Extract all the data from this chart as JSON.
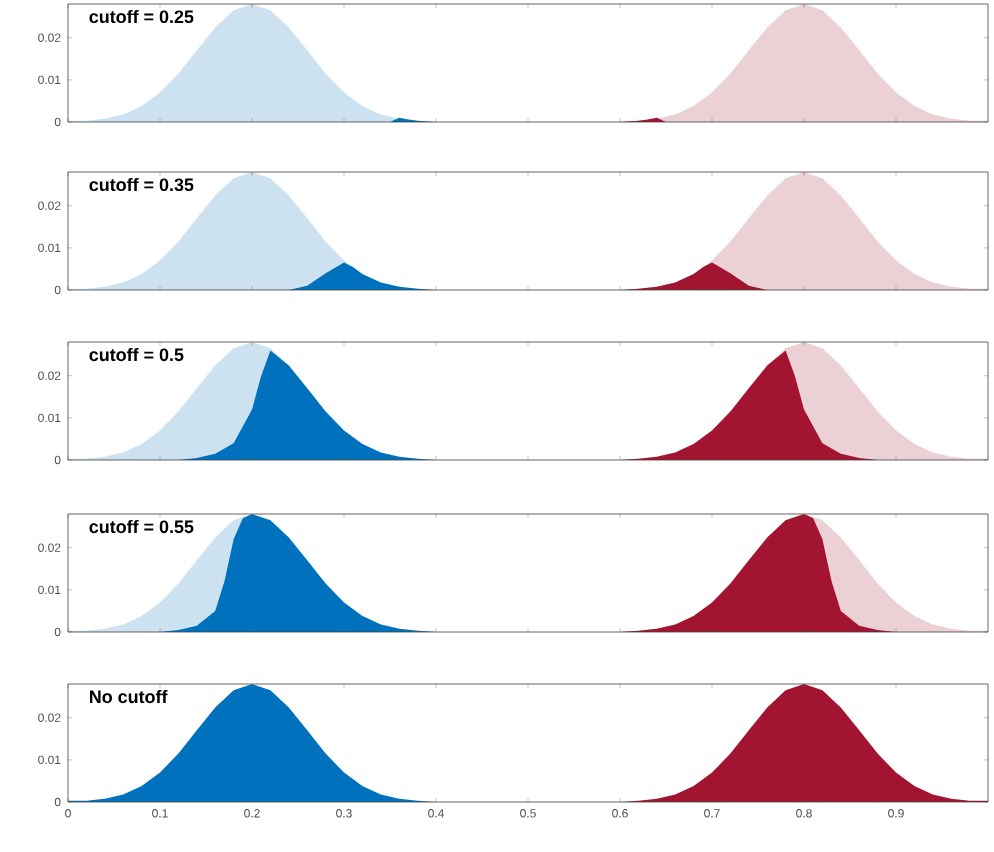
{
  "chart_data": [
    {
      "type": "area",
      "title": "cutoff = 0.25",
      "xlim": [
        0,
        1
      ],
      "ylim": [
        0,
        0.028
      ],
      "xticks": [
        0,
        0.1,
        0.2,
        0.3,
        0.4,
        0.5,
        0.6,
        0.7,
        0.8,
        0.9
      ],
      "yticks": [
        0,
        0.01,
        0.02
      ],
      "tick_labels": "y",
      "series": [
        {
          "color": "#cce2f0",
          "x": [
            0,
            0.02,
            0.04,
            0.06,
            0.08,
            0.1,
            0.12,
            0.14,
            0.16,
            0.18,
            0.2,
            0.22,
            0.24,
            0.26,
            0.28,
            0.3,
            0.32,
            0.34,
            0.36,
            0.38,
            0.4
          ],
          "values": [
            0.0003,
            0.0003,
            0.0008,
            0.0018,
            0.0038,
            0.007,
            0.0115,
            0.017,
            0.0224,
            0.0265,
            0.028,
            0.0265,
            0.0224,
            0.017,
            0.0115,
            0.007,
            0.0038,
            0.0018,
            0.0008,
            0.0003,
            0
          ]
        },
        {
          "color": "#ebd0d5",
          "x": [
            0.6,
            0.62,
            0.64,
            0.66,
            0.68,
            0.7,
            0.72,
            0.74,
            0.76,
            0.78,
            0.8,
            0.82,
            0.84,
            0.86,
            0.88,
            0.9,
            0.92,
            0.94,
            0.96,
            0.98,
            1
          ],
          "values": [
            0,
            0.0003,
            0.0008,
            0.0018,
            0.0038,
            0.007,
            0.0115,
            0.017,
            0.0224,
            0.0265,
            0.028,
            0.0265,
            0.0224,
            0.017,
            0.0115,
            0.007,
            0.0038,
            0.0018,
            0.0008,
            0.0003,
            0.0003
          ]
        },
        {
          "color": "#0072bd",
          "x": [
            0.35,
            0.36,
            0.37,
            0.38,
            0.4
          ],
          "values": [
            0,
            0.001,
            0.0006,
            0.0003,
            0
          ]
        },
        {
          "color": "#a2142f",
          "x": [
            0.6,
            0.62,
            0.63,
            0.64,
            0.65
          ],
          "values": [
            0,
            0.0003,
            0.0006,
            0.001,
            0
          ]
        }
      ]
    },
    {
      "type": "area",
      "title": "cutoff = 0.35",
      "xlim": [
        0,
        1
      ],
      "ylim": [
        0,
        0.028
      ],
      "xticks": [
        0,
        0.1,
        0.2,
        0.3,
        0.4,
        0.5,
        0.6,
        0.7,
        0.8,
        0.9
      ],
      "yticks": [
        0,
        0.01,
        0.02
      ],
      "tick_labels": "y",
      "series": [
        {
          "color": "#cce2f0",
          "x": [
            0,
            0.02,
            0.04,
            0.06,
            0.08,
            0.1,
            0.12,
            0.14,
            0.16,
            0.18,
            0.2,
            0.22,
            0.24,
            0.26,
            0.28,
            0.3,
            0.32,
            0.34,
            0.36,
            0.38,
            0.4
          ],
          "values": [
            0.0003,
            0.0003,
            0.0008,
            0.0018,
            0.0038,
            0.007,
            0.0115,
            0.017,
            0.0224,
            0.0265,
            0.028,
            0.0265,
            0.0224,
            0.017,
            0.0115,
            0.007,
            0.0038,
            0.0018,
            0.0008,
            0.0003,
            0
          ]
        },
        {
          "color": "#ebd0d5",
          "x": [
            0.6,
            0.62,
            0.64,
            0.66,
            0.68,
            0.7,
            0.72,
            0.74,
            0.76,
            0.78,
            0.8,
            0.82,
            0.84,
            0.86,
            0.88,
            0.9,
            0.92,
            0.94,
            0.96,
            0.98,
            1
          ],
          "values": [
            0,
            0.0003,
            0.0008,
            0.0018,
            0.0038,
            0.007,
            0.0115,
            0.017,
            0.0224,
            0.0265,
            0.028,
            0.0265,
            0.0224,
            0.017,
            0.0115,
            0.007,
            0.0038,
            0.0018,
            0.0008,
            0.0003,
            0.0003
          ]
        },
        {
          "color": "#0072bd",
          "x": [
            0.24,
            0.26,
            0.28,
            0.3,
            0.31,
            0.32,
            0.34,
            0.36,
            0.38,
            0.4
          ],
          "values": [
            0,
            0.001,
            0.004,
            0.0065,
            0.0054,
            0.0038,
            0.0018,
            0.0008,
            0.0003,
            0
          ]
        },
        {
          "color": "#a2142f",
          "x": [
            0.6,
            0.62,
            0.64,
            0.66,
            0.68,
            0.69,
            0.7,
            0.72,
            0.74,
            0.76
          ],
          "values": [
            0,
            0.0003,
            0.0008,
            0.0018,
            0.0038,
            0.0054,
            0.0065,
            0.004,
            0.001,
            0
          ]
        }
      ]
    },
    {
      "type": "area",
      "title": "cutoff = 0.5",
      "xlim": [
        0,
        1
      ],
      "ylim": [
        0,
        0.028
      ],
      "xticks": [
        0,
        0.1,
        0.2,
        0.3,
        0.4,
        0.5,
        0.6,
        0.7,
        0.8,
        0.9
      ],
      "yticks": [
        0,
        0.01,
        0.02
      ],
      "tick_labels": "y",
      "series": [
        {
          "color": "#cce2f0",
          "x": [
            0,
            0.02,
            0.04,
            0.06,
            0.08,
            0.1,
            0.12,
            0.14,
            0.16,
            0.18,
            0.2,
            0.22,
            0.24,
            0.26,
            0.28,
            0.3,
            0.32,
            0.34,
            0.36,
            0.38,
            0.4
          ],
          "values": [
            0.0003,
            0.0003,
            0.0008,
            0.0018,
            0.0038,
            0.007,
            0.0115,
            0.017,
            0.0224,
            0.0265,
            0.028,
            0.0265,
            0.0224,
            0.017,
            0.0115,
            0.007,
            0.0038,
            0.0018,
            0.0008,
            0.0003,
            0
          ]
        },
        {
          "color": "#ebd0d5",
          "x": [
            0.6,
            0.62,
            0.64,
            0.66,
            0.68,
            0.7,
            0.72,
            0.74,
            0.76,
            0.78,
            0.8,
            0.82,
            0.84,
            0.86,
            0.88,
            0.9,
            0.92,
            0.94,
            0.96,
            0.98,
            1
          ],
          "values": [
            0,
            0.0003,
            0.0008,
            0.0018,
            0.0038,
            0.007,
            0.0115,
            0.017,
            0.0224,
            0.0265,
            0.028,
            0.0265,
            0.0224,
            0.017,
            0.0115,
            0.007,
            0.0038,
            0.0018,
            0.0008,
            0.0003,
            0.0003
          ]
        },
        {
          "color": "#0072bd",
          "x": [
            0.12,
            0.14,
            0.16,
            0.18,
            0.2,
            0.21,
            0.22,
            0.24,
            0.26,
            0.28,
            0.3,
            0.32,
            0.34,
            0.36,
            0.38,
            0.4
          ],
          "values": [
            0,
            0.0005,
            0.0015,
            0.004,
            0.012,
            0.02,
            0.026,
            0.0224,
            0.017,
            0.0115,
            0.007,
            0.0038,
            0.0018,
            0.0008,
            0.0003,
            0
          ]
        },
        {
          "color": "#a2142f",
          "x": [
            0.6,
            0.62,
            0.64,
            0.66,
            0.68,
            0.7,
            0.72,
            0.74,
            0.76,
            0.78,
            0.79,
            0.8,
            0.82,
            0.84,
            0.86,
            0.88
          ],
          "values": [
            0,
            0.0003,
            0.0008,
            0.0018,
            0.0038,
            0.007,
            0.0115,
            0.017,
            0.0224,
            0.026,
            0.02,
            0.012,
            0.004,
            0.0015,
            0.0005,
            0
          ]
        }
      ]
    },
    {
      "type": "area",
      "title": "cutoff = 0.55",
      "xlim": [
        0,
        1
      ],
      "ylim": [
        0,
        0.028
      ],
      "xticks": [
        0,
        0.1,
        0.2,
        0.3,
        0.4,
        0.5,
        0.6,
        0.7,
        0.8,
        0.9
      ],
      "yticks": [
        0,
        0.01,
        0.02
      ],
      "tick_labels": "y",
      "series": [
        {
          "color": "#cce2f0",
          "x": [
            0,
            0.02,
            0.04,
            0.06,
            0.08,
            0.1,
            0.12,
            0.14,
            0.16,
            0.18,
            0.2,
            0.22,
            0.24,
            0.26,
            0.28,
            0.3,
            0.32,
            0.34,
            0.36,
            0.38,
            0.4
          ],
          "values": [
            0.0003,
            0.0003,
            0.0008,
            0.0018,
            0.0038,
            0.007,
            0.0115,
            0.017,
            0.0224,
            0.0265,
            0.028,
            0.0265,
            0.0224,
            0.017,
            0.0115,
            0.007,
            0.0038,
            0.0018,
            0.0008,
            0.0003,
            0
          ]
        },
        {
          "color": "#ebd0d5",
          "x": [
            0.6,
            0.62,
            0.64,
            0.66,
            0.68,
            0.7,
            0.72,
            0.74,
            0.76,
            0.78,
            0.8,
            0.82,
            0.84,
            0.86,
            0.88,
            0.9,
            0.92,
            0.94,
            0.96,
            0.98,
            1
          ],
          "values": [
            0,
            0.0003,
            0.0008,
            0.0018,
            0.0038,
            0.007,
            0.0115,
            0.017,
            0.0224,
            0.0265,
            0.028,
            0.0265,
            0.0224,
            0.017,
            0.0115,
            0.007,
            0.0038,
            0.0018,
            0.0008,
            0.0003,
            0.0003
          ]
        },
        {
          "color": "#0072bd",
          "x": [
            0.1,
            0.12,
            0.14,
            0.16,
            0.17,
            0.18,
            0.19,
            0.2,
            0.22,
            0.24,
            0.26,
            0.28,
            0.3,
            0.32,
            0.34,
            0.36,
            0.38,
            0.4
          ],
          "values": [
            0,
            0.0005,
            0.0015,
            0.005,
            0.012,
            0.022,
            0.027,
            0.028,
            0.0265,
            0.0224,
            0.017,
            0.0115,
            0.007,
            0.0038,
            0.0018,
            0.0008,
            0.0003,
            0
          ]
        },
        {
          "color": "#a2142f",
          "x": [
            0.6,
            0.62,
            0.64,
            0.66,
            0.68,
            0.7,
            0.72,
            0.74,
            0.76,
            0.78,
            0.8,
            0.81,
            0.82,
            0.83,
            0.84,
            0.86,
            0.88,
            0.9
          ],
          "values": [
            0,
            0.0003,
            0.0008,
            0.0018,
            0.0038,
            0.007,
            0.0115,
            0.017,
            0.0224,
            0.0265,
            0.028,
            0.027,
            0.022,
            0.012,
            0.005,
            0.0015,
            0.0005,
            0
          ]
        }
      ]
    },
    {
      "type": "area",
      "title": "No cutoff",
      "xlim": [
        0,
        1
      ],
      "ylim": [
        0,
        0.028
      ],
      "xticks": [
        0,
        0.1,
        0.2,
        0.3,
        0.4,
        0.5,
        0.6,
        0.7,
        0.8,
        0.9
      ],
      "yticks": [
        0,
        0.01,
        0.02
      ],
      "series": [
        {
          "color": "#0072bd",
          "x": [
            0,
            0.02,
            0.04,
            0.06,
            0.08,
            0.1,
            0.12,
            0.14,
            0.16,
            0.18,
            0.2,
            0.22,
            0.24,
            0.26,
            0.28,
            0.3,
            0.32,
            0.34,
            0.36,
            0.38,
            0.4
          ],
          "values": [
            0.0003,
            0.0003,
            0.0008,
            0.0018,
            0.0038,
            0.007,
            0.0115,
            0.017,
            0.0224,
            0.0265,
            0.028,
            0.0265,
            0.0224,
            0.017,
            0.0115,
            0.007,
            0.0038,
            0.0018,
            0.0008,
            0.0003,
            0
          ]
        },
        {
          "color": "#a2142f",
          "x": [
            0.6,
            0.62,
            0.64,
            0.66,
            0.68,
            0.7,
            0.72,
            0.74,
            0.76,
            0.78,
            0.8,
            0.82,
            0.84,
            0.86,
            0.88,
            0.9,
            0.92,
            0.94,
            0.96,
            0.98,
            1
          ],
          "values": [
            0,
            0.0003,
            0.0008,
            0.0018,
            0.0038,
            0.007,
            0.0115,
            0.017,
            0.0224,
            0.0265,
            0.028,
            0.0265,
            0.0224,
            0.017,
            0.0115,
            0.007,
            0.0038,
            0.0018,
            0.0008,
            0.0003,
            0.0003
          ]
        }
      ]
    }
  ]
}
